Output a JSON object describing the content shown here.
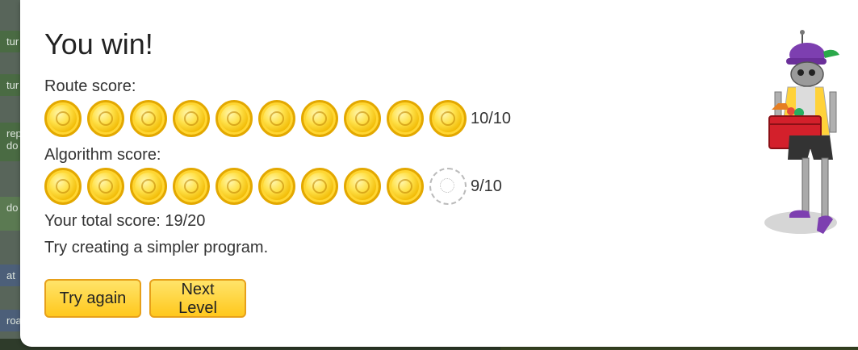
{
  "background": {
    "blocks": [
      "tur",
      "tur",
      "rep",
      "do",
      "do",
      "at",
      "roa"
    ]
  },
  "dialog": {
    "title": "You win!",
    "route_score_label": "Route score:",
    "route_score": {
      "earned": 10,
      "total": 10,
      "text": "10/10"
    },
    "algorithm_score_label": "Algorithm score:",
    "algorithm_score": {
      "earned": 9,
      "total": 10,
      "text": "9/10"
    },
    "total_score": "Your total score: 19/20",
    "hint": "Try creating a simpler program.",
    "buttons": {
      "try_again": "Try again",
      "next_level": "Next Level"
    }
  },
  "colors": {
    "button_bg": "#ffc81d",
    "button_border": "#e7a01a",
    "coin": "#ffd633"
  },
  "icons": {
    "coin": "gold-coin-icon",
    "empty_coin": "empty-coin-icon",
    "character": "robot-character"
  }
}
